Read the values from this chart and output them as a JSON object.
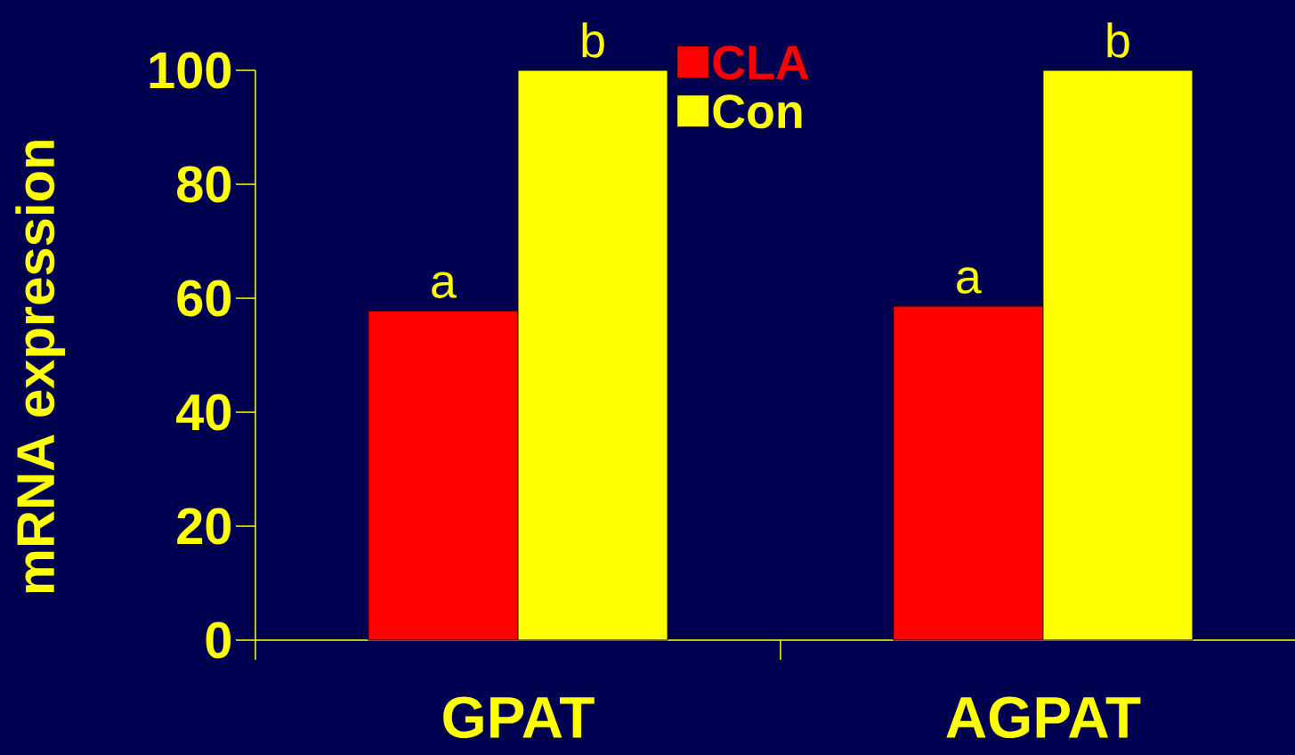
{
  "chart_data": {
    "type": "bar",
    "ylabel": "mRNA expression",
    "categories": [
      "GPAT",
      "AGPAT"
    ],
    "series": [
      {
        "name": "CLA",
        "color": "#ff0000",
        "values": [
          57.8,
          58.6
        ]
      },
      {
        "name": "Con",
        "color": "#ffff00",
        "values": [
          100,
          100
        ]
      }
    ],
    "annotations": [
      {
        "text": "a",
        "x": "GPAT",
        "y": 57.8
      },
      {
        "text": "b",
        "x": "GPAT",
        "y": 100
      },
      {
        "text": "a",
        "x": "AGPAT",
        "y": 58.6
      },
      {
        "text": "b",
        "x": "AGPAT",
        "y": 100
      }
    ],
    "ylim": [
      0,
      100
    ],
    "yticks": [
      0,
      20,
      40,
      60,
      80,
      100
    ],
    "grid": false,
    "legend": "top"
  }
}
